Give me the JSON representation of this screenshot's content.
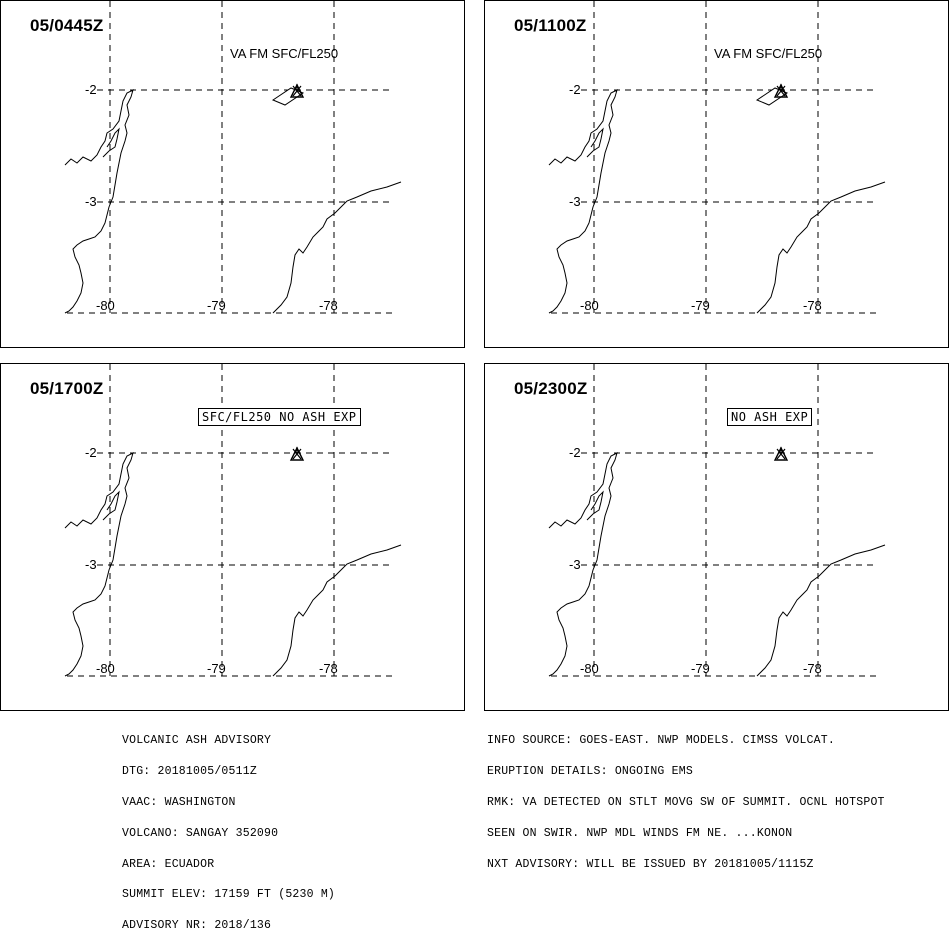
{
  "panels": [
    {
      "time": "05/0445Z",
      "note": "VA FM SFC/FL250",
      "box": "",
      "plume": "ne"
    },
    {
      "time": "05/1100Z",
      "note": "VA FM SFC/FL250",
      "box": "",
      "plume": "ne"
    },
    {
      "time": "05/1700Z",
      "note": "",
      "box": "SFC/FL250 NO ASH EXP",
      "plume": "none"
    },
    {
      "time": "05/2300Z",
      "note": "",
      "box": "NO ASH EXP",
      "plume": "none"
    }
  ],
  "grid": {
    "lat_labels": [
      "-2",
      "-3"
    ],
    "lon_labels": [
      "-80",
      "-79",
      "-78"
    ]
  },
  "advisory_left": [
    "VOLCANIC ASH ADVISORY",
    "DTG: 20181005/0511Z",
    "VAAC: WASHINGTON",
    "VOLCANO: SANGAY 352090",
    "AREA: ECUADOR",
    "SUMMIT ELEV: 17159 FT (5230 M)",
    "ADVISORY NR: 2018/136"
  ],
  "advisory_right": [
    "INFO SOURCE: GOES-EAST. NWP MODELS. CIMSS VOLCAT.",
    "ERUPTION DETAILS: ONGOING EMS",
    "RMK: VA DETECTED ON STLT MOVG SW OF SUMMIT. OCNL HOTSPOT",
    "SEEN ON SWIR. NWP MDL WINDS FM NE. ...KONON",
    "NXT ADVISORY: WILL BE ISSUED BY 20181005/1115Z"
  ],
  "colors": {
    "line": "#000000",
    "background": "#ffffff"
  },
  "icons": {
    "volcano": "triangle-volcano-icon"
  }
}
